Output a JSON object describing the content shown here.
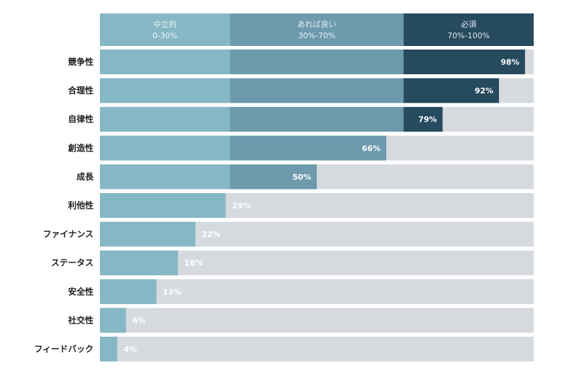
{
  "chart_data": {
    "type": "bar",
    "orientation": "horizontal",
    "xlim": [
      0,
      100
    ],
    "bands": [
      {
        "title": "中立的",
        "range": "0-30%",
        "from": 0,
        "to": 30,
        "color": "#86b7c4",
        "text_color": "#eaf4f6"
      },
      {
        "title": "あれば良い",
        "range": "30%-70%",
        "from": 30,
        "to": 70,
        "color": "#6d9aad",
        "text_color": "#e6eff3"
      },
      {
        "title": "必須",
        "range": "70%-100%",
        "from": 70,
        "to": 100,
        "color": "#264a5e",
        "text_color": "#dbe6eb"
      }
    ],
    "track_color": "#d6dadf",
    "categories": [
      "競争性",
      "合理性",
      "自律性",
      "創造性",
      "成長",
      "利他性",
      "ファイナンス",
      "ステータス",
      "安全性",
      "社交性",
      "フィードバック"
    ],
    "values": [
      98,
      92,
      79,
      66,
      50,
      29,
      22,
      18,
      13,
      6,
      4
    ],
    "labels": [
      "98%",
      "92%",
      "79%",
      "66%",
      "50%",
      "29%",
      "22%",
      "18%",
      "13%",
      "6%",
      "4%"
    ]
  }
}
